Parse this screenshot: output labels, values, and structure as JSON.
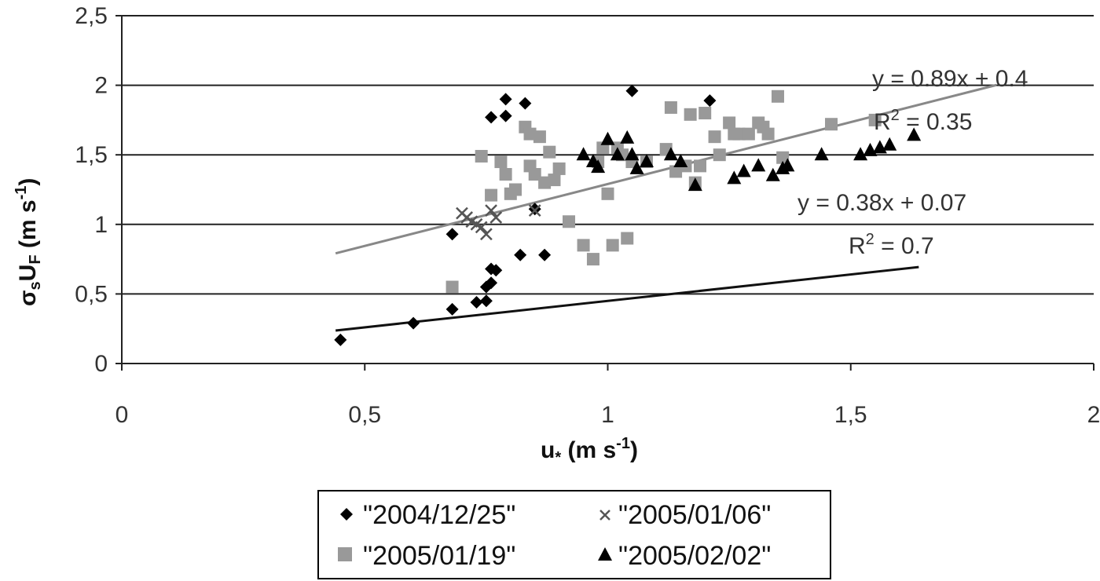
{
  "chart_data": {
    "type": "scatter",
    "xlabel": {
      "main": "u",
      "sub": "*",
      "unit_pre": " (m s",
      "unit_sup": "-1",
      "unit_post": ")"
    },
    "ylabel": {
      "sigma": "σ",
      "sigma_sub": "s",
      "u": "U",
      "u_sub": "F",
      "unit_pre": " (m s",
      "unit_sup": "-1",
      "unit_post": ")"
    },
    "xlim": [
      0,
      2
    ],
    "ylim": [
      0,
      2.5
    ],
    "xticks": [
      0,
      0.5,
      1,
      1.5,
      2
    ],
    "xtick_labels": [
      "0",
      "0,5",
      "1",
      "1,5",
      "2"
    ],
    "yticks": [
      0,
      0.5,
      1,
      1.5,
      2,
      2.5
    ],
    "ytick_labels": [
      "0",
      "0,5",
      "1",
      "1,5",
      "2",
      "2,5"
    ],
    "grid": "horizontal",
    "legend_position": "bottom",
    "series": [
      {
        "name": "\"2004/12/25\"",
        "marker": "diamond",
        "color": "#000000",
        "points": [
          [
            0.45,
            0.17
          ],
          [
            0.6,
            0.29
          ],
          [
            0.68,
            0.39
          ],
          [
            0.68,
            0.93
          ],
          [
            0.73,
            0.44
          ],
          [
            0.75,
            0.45
          ],
          [
            0.75,
            0.55
          ],
          [
            0.76,
            0.58
          ],
          [
            0.76,
            0.68
          ],
          [
            0.76,
            1.77
          ],
          [
            0.77,
            0.67
          ],
          [
            0.79,
            1.9
          ],
          [
            0.79,
            1.78
          ],
          [
            0.82,
            0.78
          ],
          [
            0.83,
            1.87
          ],
          [
            0.85,
            1.11
          ],
          [
            0.87,
            0.78
          ],
          [
            1.05,
            1.96
          ],
          [
            1.21,
            1.89
          ]
        ]
      },
      {
        "name": "\"2005/01/06\"",
        "marker": "x",
        "color": "#555555",
        "points": [
          [
            0.7,
            1.08
          ],
          [
            0.71,
            1.05
          ],
          [
            0.72,
            1.02
          ],
          [
            0.73,
            1.0
          ],
          [
            0.74,
            0.98
          ],
          [
            0.75,
            0.93
          ],
          [
            0.76,
            1.1
          ],
          [
            0.77,
            1.05
          ],
          [
            0.85,
            1.1
          ]
        ]
      },
      {
        "name": "\"2005/01/19\"",
        "marker": "square",
        "color": "#999999",
        "points": [
          [
            0.68,
            0.55
          ],
          [
            0.74,
            1.49
          ],
          [
            0.76,
            1.21
          ],
          [
            0.78,
            1.45
          ],
          [
            0.79,
            1.36
          ],
          [
            0.8,
            1.22
          ],
          [
            0.81,
            1.25
          ],
          [
            0.83,
            1.7
          ],
          [
            0.84,
            1.65
          ],
          [
            0.84,
            1.42
          ],
          [
            0.85,
            1.36
          ],
          [
            0.86,
            1.63
          ],
          [
            0.87,
            1.3
          ],
          [
            0.88,
            1.52
          ],
          [
            0.89,
            1.32
          ],
          [
            0.9,
            1.4
          ],
          [
            0.92,
            1.02
          ],
          [
            0.95,
            0.85
          ],
          [
            0.97,
            0.75
          ],
          [
            0.98,
            1.45
          ],
          [
            0.99,
            1.55
          ],
          [
            1.0,
            1.22
          ],
          [
            1.01,
            0.85
          ],
          [
            1.02,
            1.55
          ],
          [
            1.03,
            1.5
          ],
          [
            1.04,
            0.9
          ],
          [
            1.05,
            1.45
          ],
          [
            1.08,
            1.45
          ],
          [
            1.12,
            1.54
          ],
          [
            1.13,
            1.84
          ],
          [
            1.14,
            1.38
          ],
          [
            1.16,
            1.42
          ],
          [
            1.17,
            1.79
          ],
          [
            1.18,
            1.3
          ],
          [
            1.19,
            1.42
          ],
          [
            1.2,
            1.8
          ],
          [
            1.22,
            1.63
          ],
          [
            1.23,
            1.5
          ],
          [
            1.25,
            1.73
          ],
          [
            1.26,
            1.65
          ],
          [
            1.27,
            1.65
          ],
          [
            1.29,
            1.65
          ],
          [
            1.31,
            1.73
          ],
          [
            1.32,
            1.7
          ],
          [
            1.33,
            1.65
          ],
          [
            1.35,
            1.92
          ],
          [
            1.36,
            1.48
          ],
          [
            1.46,
            1.72
          ],
          [
            1.55,
            1.75
          ]
        ]
      },
      {
        "name": "\"2005/02/02\"",
        "marker": "triangle",
        "color": "#000000",
        "points": [
          [
            0.95,
            1.5
          ],
          [
            0.97,
            1.45
          ],
          [
            0.98,
            1.41
          ],
          [
            1.0,
            1.61
          ],
          [
            1.02,
            1.5
          ],
          [
            1.04,
            1.62
          ],
          [
            1.05,
            1.5
          ],
          [
            1.06,
            1.4
          ],
          [
            1.08,
            1.45
          ],
          [
            1.13,
            1.5
          ],
          [
            1.15,
            1.45
          ],
          [
            1.18,
            1.28
          ],
          [
            1.26,
            1.33
          ],
          [
            1.28,
            1.38
          ],
          [
            1.31,
            1.42
          ],
          [
            1.34,
            1.35
          ],
          [
            1.36,
            1.4
          ],
          [
            1.37,
            1.42
          ],
          [
            1.44,
            1.5
          ],
          [
            1.52,
            1.5
          ],
          [
            1.54,
            1.53
          ],
          [
            1.56,
            1.55
          ],
          [
            1.58,
            1.57
          ],
          [
            1.63,
            1.64
          ]
        ]
      }
    ],
    "trendlines": [
      {
        "equation": "y = 0.89x + 0.4",
        "r2": "R",
        "r2_sup": "2",
        "r2_val": " = 0.35",
        "slope": 0.89,
        "intercept": 0.4,
        "x_range": [
          0.44,
          1.8
        ],
        "color": "#888888"
      },
      {
        "equation": "y = 0.38x + 0.07",
        "r2": "R",
        "r2_sup": "2",
        "r2_val": " = 0.7",
        "slope": 0.38,
        "intercept": 0.07,
        "x_range": [
          0.44,
          1.64
        ],
        "color": "#111111"
      }
    ]
  }
}
